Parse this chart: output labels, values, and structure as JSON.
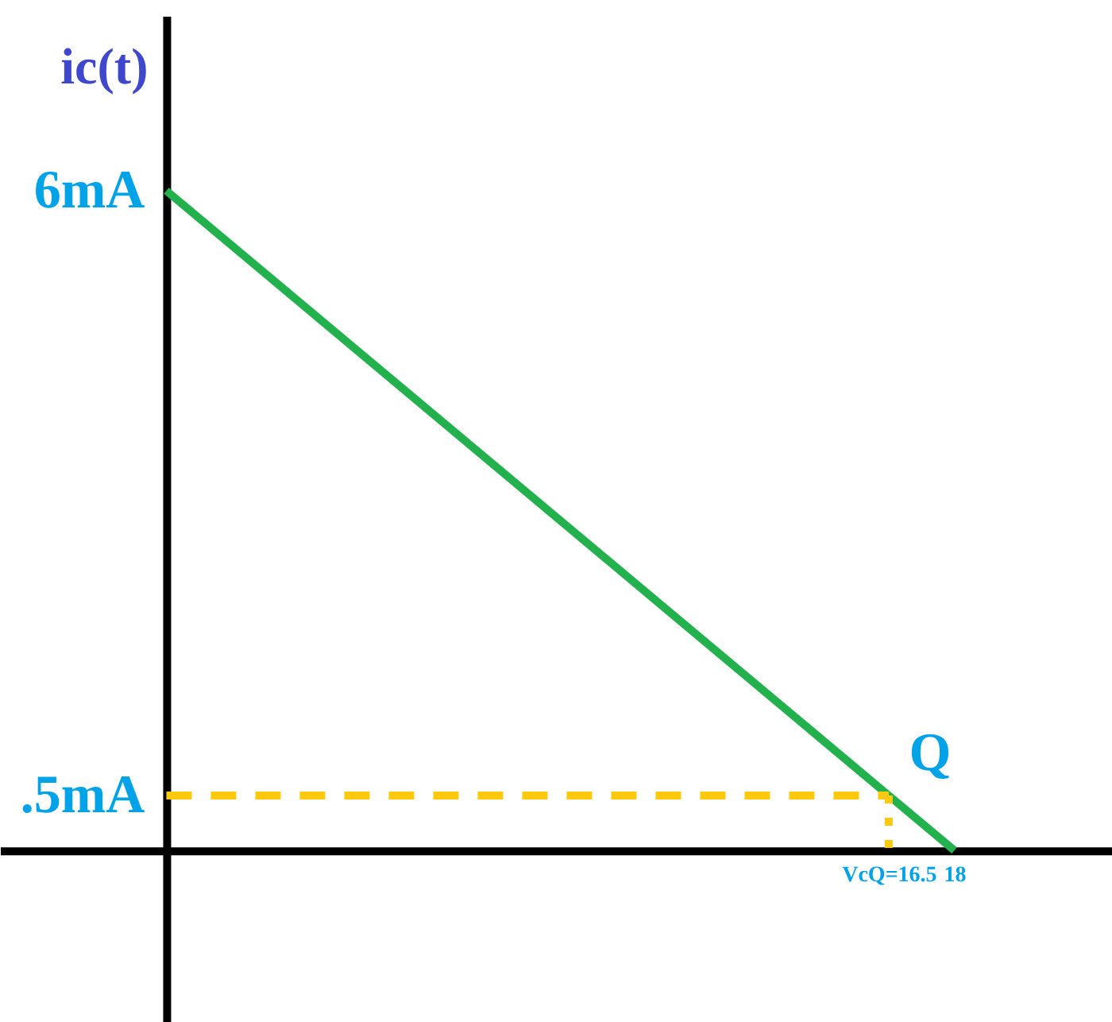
{
  "chart_data": {
    "type": "line",
    "ylabel": "ic(t)",
    "series": [
      {
        "color": "#22b14c",
        "x": [
          0,
          16.5,
          18
        ],
        "values": [
          6,
          0.5,
          0
        ],
        "line_style": "solid"
      },
      {
        "color": "#ffc90e",
        "x": [
          0,
          16.5
        ],
        "values": [
          0.5,
          0.5
        ],
        "line_style": "dashed"
      },
      {
        "color": "#ffc90e",
        "x": [
          16.5,
          16.5
        ],
        "values": [
          0.5,
          0
        ],
        "line_style": "dotted"
      }
    ],
    "xlim": [
      -3.8,
      21.6
    ],
    "ylim": [
      -1.56,
      7.59
    ],
    "xticks": [
      {
        "value": 16.5,
        "label": "VcQ=16.5"
      },
      18
    ],
    "yticks": [
      {
        "value": 0.5,
        "label": ".5mA"
      },
      {
        "value": 6,
        "label": "6mA"
      }
    ],
    "annotations": [
      {
        "text": "Q",
        "x": 16.5,
        "y": 0.5
      }
    ],
    "grid": false
  }
}
